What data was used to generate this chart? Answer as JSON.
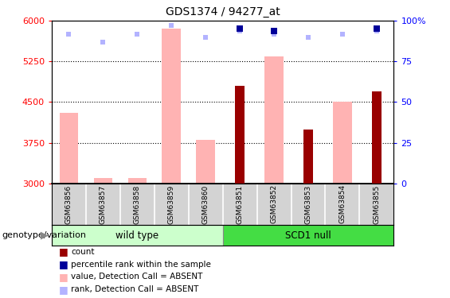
{
  "title": "GDS1374 / 94277_at",
  "samples": [
    "GSM63856",
    "GSM63857",
    "GSM63858",
    "GSM63859",
    "GSM63860",
    "GSM63851",
    "GSM63852",
    "GSM63853",
    "GSM63854",
    "GSM63855"
  ],
  "value_absent": [
    4300,
    3100,
    3100,
    5850,
    3800,
    null,
    5350,
    null,
    4500,
    null
  ],
  "rank_absent_pct": [
    92,
    87,
    92,
    97,
    90,
    94,
    92,
    90,
    92,
    94
  ],
  "count_value": [
    null,
    null,
    null,
    null,
    null,
    4800,
    null,
    4000,
    null,
    4700
  ],
  "rank_count_pct": [
    null,
    null,
    null,
    null,
    null,
    95,
    94,
    null,
    null,
    95
  ],
  "ylim_left": [
    3000,
    6000
  ],
  "ylim_right": [
    0,
    100
  ],
  "yticks_left": [
    3000,
    3750,
    4500,
    5250,
    6000
  ],
  "yticks_right": [
    0,
    25,
    50,
    75,
    100
  ],
  "color_count": "#990000",
  "color_rank": "#000099",
  "color_value_absent": "#FFB3B3",
  "color_rank_absent": "#B3B3FF",
  "color_wildtype_light": "#CCFFCC",
  "color_wildtype_dark": "#66DD66",
  "color_scd1null_light": "#AAFFAA",
  "color_scd1null_dark": "#44DD44",
  "group_label": "genotype/variation",
  "legend_items": [
    {
      "label": "count",
      "color": "#990000",
      "marker": "s"
    },
    {
      "label": "percentile rank within the sample",
      "color": "#000099",
      "marker": "s"
    },
    {
      "label": "value, Detection Call = ABSENT",
      "color": "#FFB3B3",
      "marker": "s"
    },
    {
      "label": "rank, Detection Call = ABSENT",
      "color": "#B3B3FF",
      "marker": "s"
    }
  ]
}
